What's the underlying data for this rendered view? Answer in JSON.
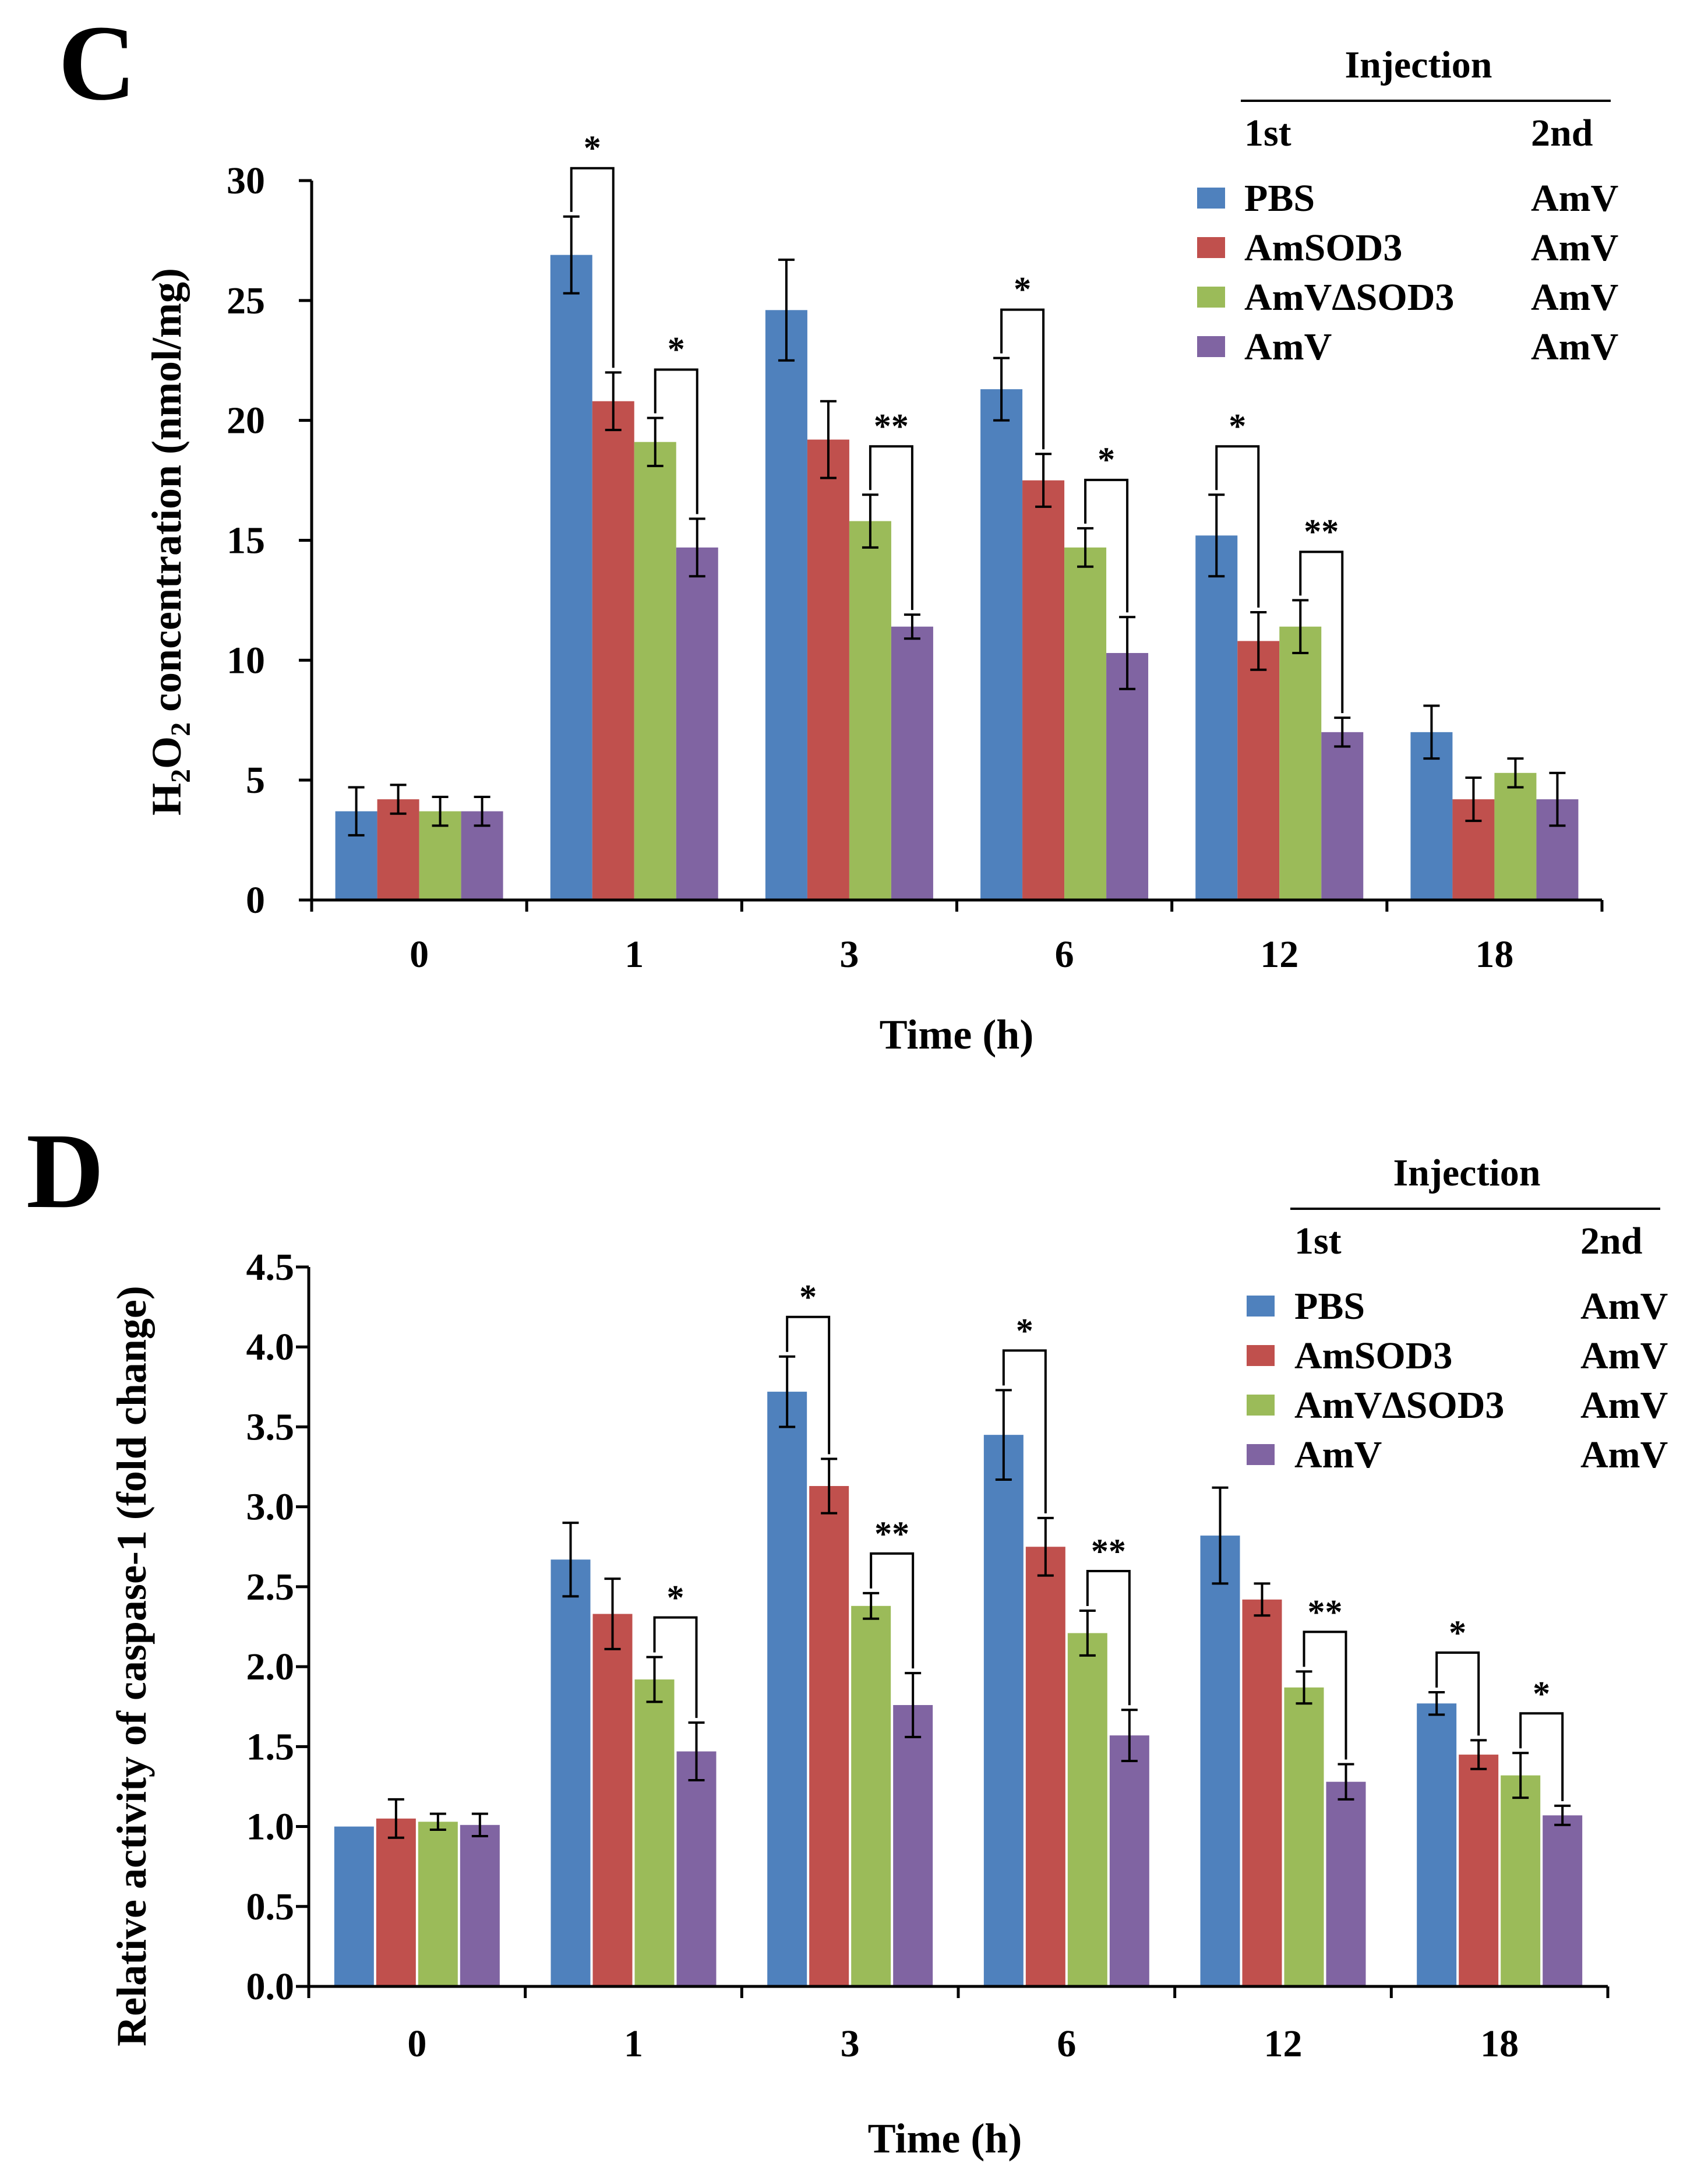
{
  "colors": {
    "PBS": "#4F81BD",
    "AmSOD3": "#C0504D",
    "AmVdSOD3": "#9BBB59",
    "AmV": "#8064A2"
  },
  "chart_data": [
    {
      "panel": "C",
      "type": "bar",
      "xlabel": "Time (h)",
      "ylabel_parts": [
        "H",
        "2",
        "O",
        "2",
        " concentration (nmol/mg)"
      ],
      "ylim": [
        0,
        30
      ],
      "yticks": [
        "0",
        "5",
        "10",
        "15",
        "20",
        "25",
        "30"
      ],
      "ytick_values": [
        0,
        5,
        10,
        15,
        20,
        25,
        30
      ],
      "categories": [
        "0",
        "1",
        "3",
        "6",
        "12",
        "18"
      ],
      "legend": {
        "title": "Injection",
        "col1_header": "1st",
        "col2_header": "2nd",
        "entries": [
          {
            "first": "PBS",
            "second": "AmV",
            "color_key": "PBS"
          },
          {
            "first": "AmSOD3",
            "second": "AmV",
            "color_key": "AmSOD3"
          },
          {
            "first": "AmVΔSOD3",
            "second": "AmV",
            "color_key": "AmVdSOD3"
          },
          {
            "first": "AmV",
            "second": "AmV",
            "color_key": "AmV"
          }
        ]
      },
      "series": [
        {
          "name": "PBS",
          "color_key": "PBS",
          "values": [
            3.7,
            26.9,
            24.6,
            21.3,
            15.2,
            7.0
          ],
          "errors": [
            1.0,
            1.6,
            2.1,
            1.3,
            1.7,
            1.1
          ]
        },
        {
          "name": "AmSOD3",
          "color_key": "AmSOD3",
          "values": [
            4.2,
            20.8,
            19.2,
            17.5,
            10.8,
            4.2
          ],
          "errors": [
            0.6,
            1.2,
            1.6,
            1.1,
            1.2,
            0.9
          ]
        },
        {
          "name": "AmVΔSOD3",
          "color_key": "AmVdSOD3",
          "values": [
            3.7,
            19.1,
            15.8,
            14.7,
            11.4,
            5.3
          ],
          "errors": [
            0.6,
            1.0,
            1.1,
            0.8,
            1.1,
            0.6
          ]
        },
        {
          "name": "AmV",
          "color_key": "AmV",
          "values": [
            3.7,
            14.7,
            11.4,
            10.3,
            7.0,
            4.2
          ],
          "errors": [
            0.6,
            1.2,
            0.5,
            1.5,
            0.6,
            1.1
          ]
        }
      ],
      "significance": [
        {
          "category": 1,
          "from": 0,
          "to": 1,
          "label": "*"
        },
        {
          "category": 1,
          "from": 2,
          "to": 3,
          "label": "*"
        },
        {
          "category": 2,
          "from": 2,
          "to": 3,
          "label": "**"
        },
        {
          "category": 3,
          "from": 0,
          "to": 1,
          "label": "*"
        },
        {
          "category": 3,
          "from": 2,
          "to": 3,
          "label": "*"
        },
        {
          "category": 4,
          "from": 0,
          "to": 1,
          "label": "*"
        },
        {
          "category": 4,
          "from": 2,
          "to": 3,
          "label": "**"
        }
      ]
    },
    {
      "panel": "D",
      "type": "bar",
      "xlabel": "Time (h)",
      "ylabel_parts": [
        "Relative activity of caspase-1 (fold change)"
      ],
      "ylim": [
        0,
        4.5
      ],
      "yticks": [
        "0.0",
        "0.5",
        "1.0",
        "1.5",
        "2.0",
        "2.5",
        "3.0",
        "3.5",
        "4.0",
        "4.5"
      ],
      "ytick_values": [
        0,
        0.5,
        1.0,
        1.5,
        2.0,
        2.5,
        3.0,
        3.5,
        4.0,
        4.5
      ],
      "categories": [
        "0",
        "1",
        "3",
        "6",
        "12",
        "18"
      ],
      "legend": {
        "title": "Injection",
        "col1_header": "1st",
        "col2_header": "2nd",
        "entries": [
          {
            "first": "PBS",
            "second": "AmV",
            "color_key": "PBS"
          },
          {
            "first": "AmSOD3",
            "second": "AmV",
            "color_key": "AmSOD3"
          },
          {
            "first": "AmVΔSOD3",
            "second": "AmV",
            "color_key": "AmVdSOD3"
          },
          {
            "first": "AmV",
            "second": "AmV",
            "color_key": "AmV"
          }
        ]
      },
      "series": [
        {
          "name": "PBS",
          "color_key": "PBS",
          "values": [
            1.0,
            2.67,
            3.72,
            3.45,
            2.82,
            1.77
          ],
          "errors": [
            0.0,
            0.23,
            0.22,
            0.28,
            0.3,
            0.07
          ]
        },
        {
          "name": "AmSOD3",
          "color_key": "AmSOD3",
          "values": [
            1.05,
            2.33,
            3.13,
            2.75,
            2.42,
            1.45
          ],
          "errors": [
            0.12,
            0.22,
            0.17,
            0.18,
            0.1,
            0.09
          ]
        },
        {
          "name": "AmVΔSOD3",
          "color_key": "AmVdSOD3",
          "values": [
            1.03,
            1.92,
            2.38,
            2.21,
            1.87,
            1.32
          ],
          "errors": [
            0.05,
            0.14,
            0.08,
            0.14,
            0.1,
            0.14
          ]
        },
        {
          "name": "AmV",
          "color_key": "AmV",
          "values": [
            1.01,
            1.47,
            1.76,
            1.57,
            1.28,
            1.07
          ],
          "errors": [
            0.07,
            0.18,
            0.2,
            0.16,
            0.11,
            0.06
          ]
        }
      ],
      "significance": [
        {
          "category": 1,
          "from": 2,
          "to": 3,
          "label": "*"
        },
        {
          "category": 2,
          "from": 0,
          "to": 1,
          "label": "*"
        },
        {
          "category": 2,
          "from": 2,
          "to": 3,
          "label": "**"
        },
        {
          "category": 3,
          "from": 0,
          "to": 1,
          "label": "*"
        },
        {
          "category": 3,
          "from": 2,
          "to": 3,
          "label": "**"
        },
        {
          "category": 4,
          "from": 2,
          "to": 3,
          "label": "**"
        },
        {
          "category": 5,
          "from": 0,
          "to": 1,
          "label": "*"
        },
        {
          "category": 5,
          "from": 2,
          "to": 3,
          "label": "*"
        }
      ]
    }
  ]
}
